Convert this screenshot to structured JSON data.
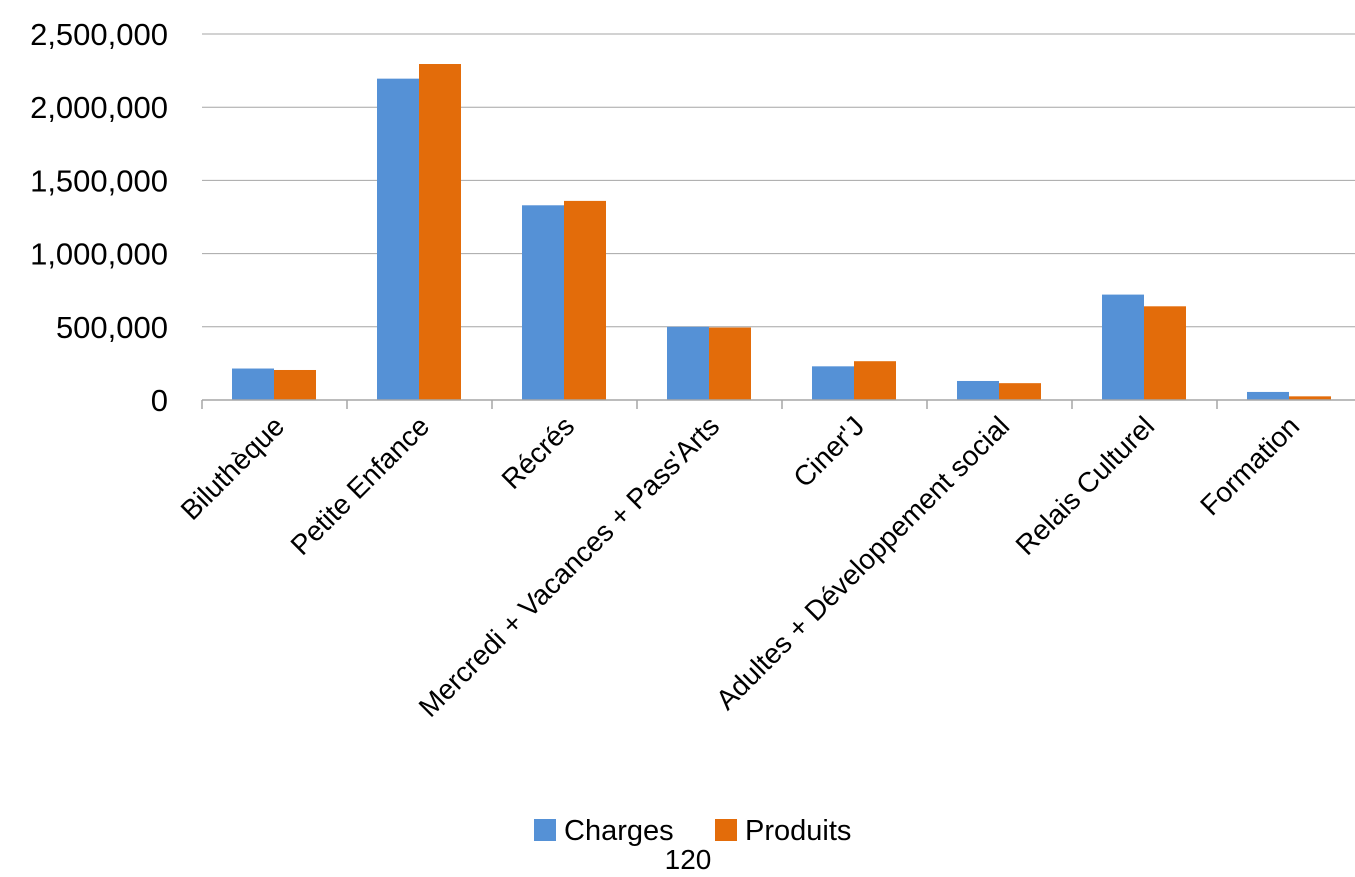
{
  "chart_data": {
    "type": "bar",
    "categories": [
      "Biluthèque",
      "Petite Enfance",
      "Récrés",
      "Mercredi + Vacances + Pass'Arts",
      "Ciner'J",
      "Adultes + Développement social",
      "Relais Culturel",
      "Formation"
    ],
    "series": [
      {
        "name": "Charges",
        "color": "#5591D6",
        "values": [
          215000,
          2195000,
          1330000,
          500000,
          230000,
          130000,
          720000,
          55000
        ]
      },
      {
        "name": "Produits",
        "color": "#E36C0A",
        "values": [
          205000,
          2295000,
          1360000,
          495000,
          265000,
          115000,
          640000,
          25000
        ]
      }
    ],
    "ylim": [
      0,
      2500000
    ],
    "yticks": [
      "0",
      "500,000",
      "1,000,000",
      "1,500,000",
      "2,000,000",
      "2,500,000"
    ],
    "grid": true,
    "legend_position": "bottom",
    "title": "",
    "xlabel": "",
    "ylabel": ""
  },
  "page_number": "120"
}
